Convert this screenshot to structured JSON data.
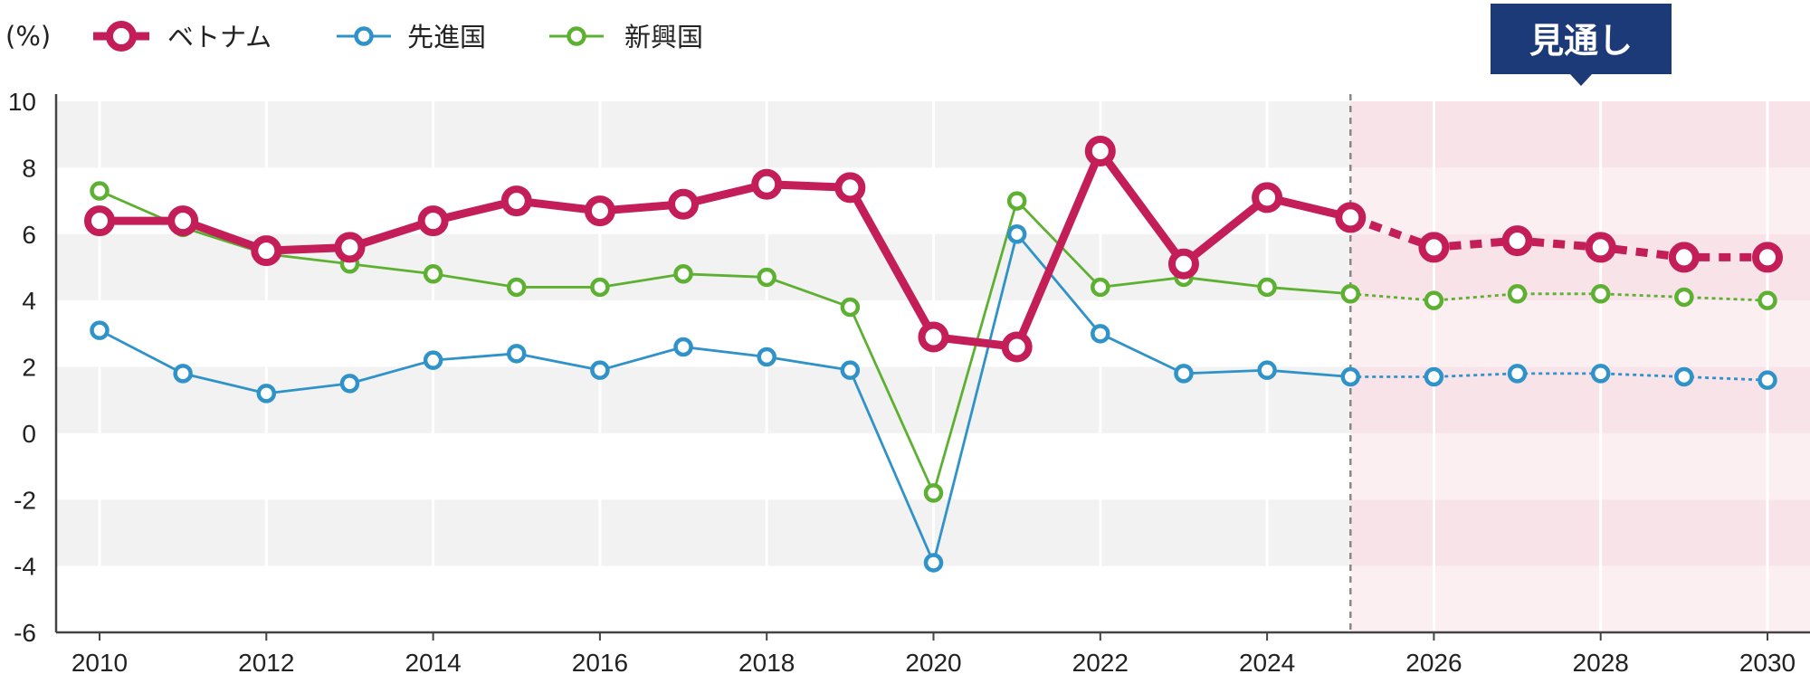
{
  "chart_data": {
    "type": "line",
    "unit_label": "(%)",
    "x": [
      2010,
      2011,
      2012,
      2013,
      2014,
      2015,
      2016,
      2017,
      2018,
      2019,
      2020,
      2021,
      2022,
      2023,
      2024,
      2025,
      2026,
      2027,
      2028,
      2029,
      2030
    ],
    "xticks": [
      "2010",
      "2012",
      "2014",
      "2016",
      "2018",
      "2020",
      "2022",
      "2024",
      "2026",
      "2028",
      "2030"
    ],
    "yticks": [
      "10",
      "8",
      "6",
      "4",
      "2",
      "0",
      "-2",
      "-4",
      "-6"
    ],
    "ylim": [
      -6,
      10
    ],
    "xlim": [
      2010,
      2030
    ],
    "forecast_start": 2025,
    "forecast_label": "見通し",
    "grid": "horizontal bands + vertical lines",
    "legend_position": "top-left",
    "series": [
      {
        "name": "ベトナム",
        "color": "#c41e58",
        "values": [
          6.4,
          6.4,
          5.5,
          5.6,
          6.4,
          7.0,
          6.7,
          6.9,
          7.5,
          7.4,
          2.9,
          2.6,
          8.5,
          5.1,
          7.1,
          6.5,
          5.6,
          5.8,
          5.6,
          5.3,
          5.3
        ]
      },
      {
        "name": "先進国",
        "color": "#2f92c8",
        "values": [
          3.1,
          1.8,
          1.2,
          1.5,
          2.2,
          2.4,
          1.9,
          2.6,
          2.3,
          1.9,
          -3.9,
          6.0,
          3.0,
          1.8,
          1.9,
          1.7,
          1.7,
          1.8,
          1.8,
          1.7,
          1.6
        ]
      },
      {
        "name": "新興国",
        "color": "#5db031",
        "values": [
          7.3,
          6.2,
          5.4,
          5.1,
          4.8,
          4.4,
          4.4,
          4.8,
          4.7,
          3.8,
          -1.8,
          7.0,
          4.4,
          4.7,
          4.4,
          4.2,
          4.0,
          4.2,
          4.2,
          4.1,
          4.0
        ]
      }
    ]
  },
  "colors": {
    "band_gray": "#f2f2f2",
    "band_pink": "#f8e3e8",
    "band_pink_light": "#fbeff2",
    "badge_bg": "#1c3a78",
    "axis": "#444444",
    "forecast_divider": "#888888"
  }
}
